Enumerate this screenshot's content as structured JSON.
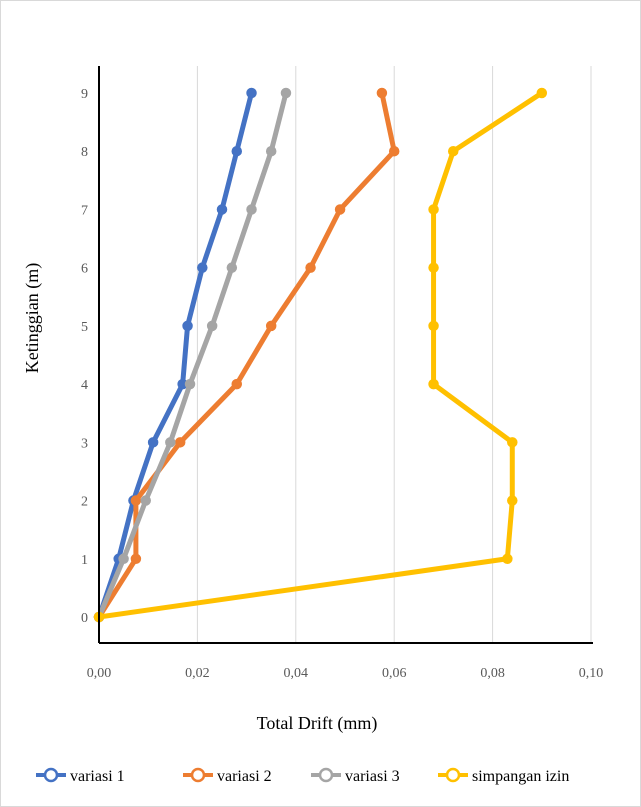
{
  "chart_data": {
    "type": "line",
    "xlabel": "Total Drift (mm)",
    "ylabel": "Ketinggian (m)",
    "xlim": [
      0,
      0.1
    ],
    "ylim": [
      0,
      9
    ],
    "x_ticks": [
      "0,00",
      "0,02",
      "0,04",
      "0,06",
      "0,08",
      "0,10"
    ],
    "y_ticks": [
      "0",
      "1",
      "2",
      "3",
      "4",
      "5",
      "6",
      "7",
      "8",
      "9"
    ],
    "grid": "vertical",
    "legend_position": "bottom",
    "series": [
      {
        "name": "variasi 1",
        "color": "#4472C4",
        "x": [
          0.0,
          0.004,
          0.007,
          0.011,
          0.017,
          0.018,
          0.021,
          0.025,
          0.028,
          0.031
        ],
        "y": [
          0,
          1,
          2,
          3,
          4,
          5,
          6,
          7,
          8,
          9
        ]
      },
      {
        "name": "variasi 2",
        "color": "#ED7D31",
        "x": [
          0.0,
          0.0075,
          0.0075,
          0.0165,
          0.028,
          0.035,
          0.043,
          0.049,
          0.06,
          0.0575
        ],
        "y": [
          0,
          1,
          2,
          3,
          4,
          5,
          6,
          7,
          8,
          9
        ]
      },
      {
        "name": "variasi 3",
        "color": "#A5A5A5",
        "x": [
          0.0,
          0.005,
          0.0095,
          0.0145,
          0.0185,
          0.023,
          0.027,
          0.031,
          0.035,
          0.038
        ],
        "y": [
          0,
          1,
          2,
          3,
          4,
          5,
          6,
          7,
          8,
          9
        ]
      },
      {
        "name": "simpangan izin",
        "color": "#FFC000",
        "x": [
          0.0,
          0.083,
          0.084,
          0.084,
          0.068,
          0.068,
          0.068,
          0.068,
          0.072,
          0.09
        ],
        "y": [
          0,
          1,
          2,
          3,
          4,
          5,
          6,
          7,
          8,
          9
        ]
      }
    ]
  }
}
